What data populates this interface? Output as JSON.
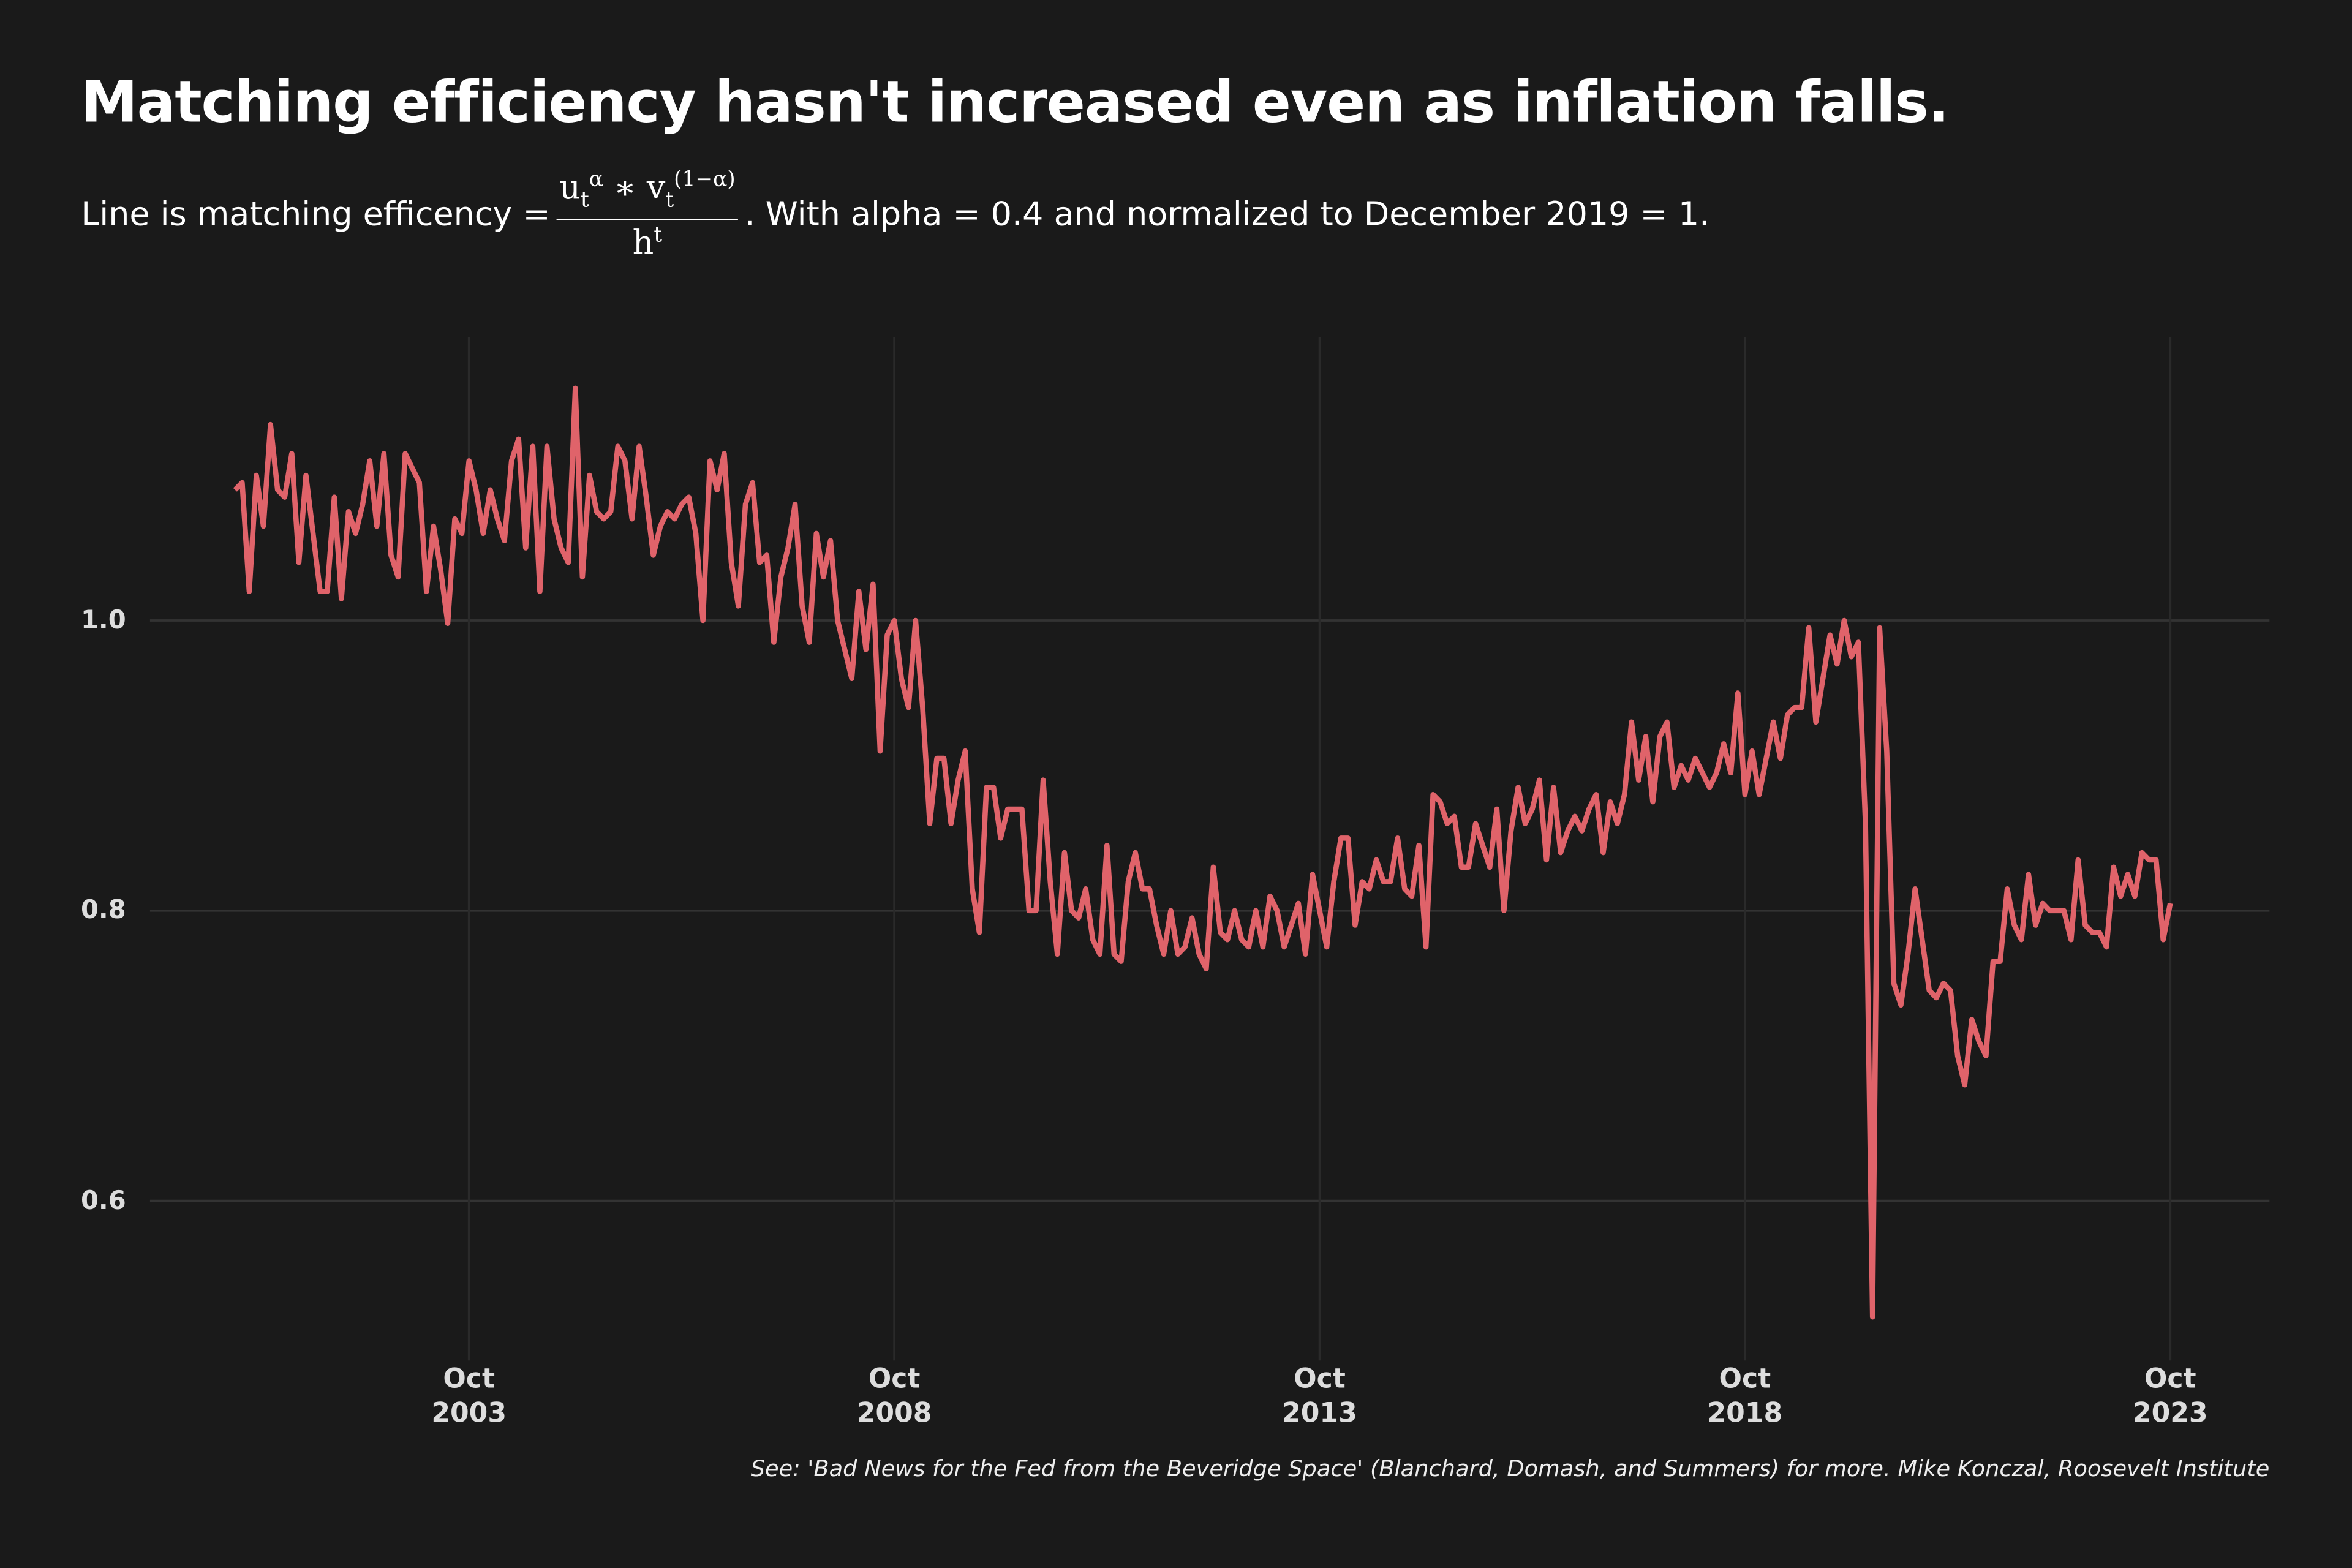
{
  "chart_data": {
    "type": "line",
    "title": "Matching efficiency hasn't increased even as inflation falls.",
    "subtitle": {
      "before": "Line is matching efficency =",
      "numerator": {
        "u": "u",
        "u_sub": "t",
        "u_sup": "α",
        "op": "∗",
        "v": "v",
        "v_sub": "t",
        "v_sup": "(1−α)"
      },
      "denominator": {
        "h": "h",
        "h_sup": "t"
      },
      "after": ". With alpha = 0.4 and normalized to December 2019 = 1."
    },
    "caption": "See: 'Bad News for the Fed from the Beveridge Space' (Blanchard, Domash, and Summers) for more. Mike Konczal, Roosevelt Institute",
    "color": "#e0636a",
    "grid": true,
    "xlim": [
      "2000-01",
      "2024-12"
    ],
    "ylim": [
      0.49,
      1.195
    ],
    "yticks": [
      0.6,
      0.8,
      {
        "value": 1,
        "label": "1.0"
      }
    ],
    "xticks": [
      {
        "value": "2003-10",
        "label": "Oct 2003"
      },
      {
        "value": "2008-10",
        "label": "Oct 2008"
      },
      {
        "value": "2013-10",
        "label": "Oct 2013"
      },
      {
        "value": "2018-10",
        "label": "Oct 2018"
      },
      {
        "value": "2023-10",
        "label": "Oct 2023"
      }
    ],
    "x": [
      "2001-01",
      "2001-02",
      "2001-03",
      "2001-04",
      "2001-05",
      "2001-06",
      "2001-07",
      "2001-08",
      "2001-09",
      "2001-10",
      "2001-11",
      "2001-12",
      "2002-01",
      "2002-02",
      "2002-03",
      "2002-04",
      "2002-05",
      "2002-06",
      "2002-07",
      "2002-08",
      "2002-09",
      "2002-10",
      "2002-11",
      "2002-12",
      "2003-01",
      "2003-02",
      "2003-03",
      "2003-04",
      "2003-05",
      "2003-06",
      "2003-07",
      "2003-08",
      "2003-09",
      "2003-10",
      "2003-11",
      "2003-12",
      "2004-01",
      "2004-02",
      "2004-03",
      "2004-04",
      "2004-05",
      "2004-06",
      "2004-07",
      "2004-08",
      "2004-09",
      "2004-10",
      "2004-11",
      "2004-12",
      "2005-01",
      "2005-02",
      "2005-03",
      "2005-04",
      "2005-05",
      "2005-06",
      "2005-07",
      "2005-08",
      "2005-09",
      "2005-10",
      "2005-11",
      "2005-12",
      "2006-01",
      "2006-02",
      "2006-03",
      "2006-04",
      "2006-05",
      "2006-06",
      "2006-07",
      "2006-08",
      "2006-09",
      "2006-10",
      "2006-11",
      "2006-12",
      "2007-01",
      "2007-02",
      "2007-03",
      "2007-04",
      "2007-05",
      "2007-06",
      "2007-07",
      "2007-08",
      "2007-09",
      "2007-10",
      "2007-11",
      "2007-12",
      "2008-01",
      "2008-02",
      "2008-03",
      "2008-04",
      "2008-05",
      "2008-06",
      "2008-07",
      "2008-08",
      "2008-09",
      "2008-10",
      "2008-11",
      "2008-12",
      "2009-01",
      "2009-02",
      "2009-03",
      "2009-04",
      "2009-05",
      "2009-06",
      "2009-07",
      "2009-08",
      "2009-09",
      "2009-10",
      "2009-11",
      "2009-12",
      "2010-01",
      "2010-02",
      "2010-03",
      "2010-04",
      "2010-05",
      "2010-06",
      "2010-07",
      "2010-08",
      "2010-09",
      "2010-10",
      "2010-11",
      "2010-12",
      "2011-01",
      "2011-02",
      "2011-03",
      "2011-04",
      "2011-05",
      "2011-06",
      "2011-07",
      "2011-08",
      "2011-09",
      "2011-10",
      "2011-11",
      "2011-12",
      "2012-01",
      "2012-02",
      "2012-03",
      "2012-04",
      "2012-05",
      "2012-06",
      "2012-07",
      "2012-08",
      "2012-09",
      "2012-10",
      "2012-11",
      "2012-12",
      "2013-01",
      "2013-02",
      "2013-03",
      "2013-04",
      "2013-05",
      "2013-06",
      "2013-07",
      "2013-08",
      "2013-09",
      "2013-10",
      "2013-11",
      "2013-12",
      "2014-01",
      "2014-02",
      "2014-03",
      "2014-04",
      "2014-05",
      "2014-06",
      "2014-07",
      "2014-08",
      "2014-09",
      "2014-10",
      "2014-11",
      "2014-12",
      "2015-01",
      "2015-02",
      "2015-03",
      "2015-04",
      "2015-05",
      "2015-06",
      "2015-07",
      "2015-08",
      "2015-09",
      "2015-10",
      "2015-11",
      "2015-12",
      "2016-01",
      "2016-02",
      "2016-03",
      "2016-04",
      "2016-05",
      "2016-06",
      "2016-07",
      "2016-08",
      "2016-09",
      "2016-10",
      "2016-11",
      "2016-12",
      "2017-01",
      "2017-02",
      "2017-03",
      "2017-04",
      "2017-05",
      "2017-06",
      "2017-07",
      "2017-08",
      "2017-09",
      "2017-10",
      "2017-11",
      "2017-12",
      "2018-01",
      "2018-02",
      "2018-03",
      "2018-04",
      "2018-05",
      "2018-06",
      "2018-07",
      "2018-08",
      "2018-09",
      "2018-10",
      "2018-11",
      "2018-12",
      "2019-01",
      "2019-02",
      "2019-03",
      "2019-04",
      "2019-05",
      "2019-06",
      "2019-07",
      "2019-08",
      "2019-09",
      "2019-10",
      "2019-11",
      "2019-12",
      "2020-01",
      "2020-02",
      "2020-03",
      "2020-04",
      "2020-05",
      "2020-06",
      "2020-07",
      "2020-08",
      "2020-09",
      "2020-10",
      "2020-11",
      "2020-12",
      "2021-01",
      "2021-02",
      "2021-03",
      "2021-04",
      "2021-05",
      "2021-06",
      "2021-07",
      "2021-08",
      "2021-09",
      "2021-10",
      "2021-11",
      "2021-12",
      "2022-01",
      "2022-02",
      "2022-03",
      "2022-04",
      "2022-05",
      "2022-06",
      "2022-07",
      "2022-08",
      "2022-09",
      "2022-10",
      "2022-11",
      "2022-12",
      "2023-01",
      "2023-02",
      "2023-03",
      "2023-04",
      "2023-05",
      "2023-06",
      "2023-07",
      "2023-08",
      "2023-09",
      "2023-10"
    ],
    "values": [
      1.09,
      1.095,
      1.02,
      1.1,
      1.065,
      1.135,
      1.09,
      1.085,
      1.115,
      1.04,
      1.1,
      1.06,
      1.02,
      1.02,
      1.085,
      1.015,
      1.075,
      1.06,
      1.08,
      1.11,
      1.065,
      1.115,
      1.045,
      1.03,
      1.115,
      1.105,
      1.095,
      1.02,
      1.065,
      1.035,
      0.998,
      1.07,
      1.06,
      1.11,
      1.09,
      1.06,
      1.09,
      1.07,
      1.055,
      1.11,
      1.125,
      1.05,
      1.12,
      1.02,
      1.12,
      1.07,
      1.05,
      1.04,
      1.16,
      1.03,
      1.1,
      1.075,
      1.07,
      1.075,
      1.12,
      1.11,
      1.07,
      1.12,
      1.085,
      1.045,
      1.065,
      1.075,
      1.07,
      1.08,
      1.085,
      1.06,
      1.0,
      1.11,
      1.09,
      1.115,
      1.04,
      1.01,
      1.08,
      1.095,
      1.04,
      1.045,
      0.985,
      1.03,
      1.05,
      1.08,
      1.01,
      0.985,
      1.06,
      1.03,
      1.055,
      1.0,
      0.98,
      0.96,
      1.02,
      0.98,
      1.025,
      0.91,
      0.99,
      1.0,
      0.96,
      0.94,
      1.0,
      0.94,
      0.86,
      0.905,
      0.905,
      0.86,
      0.89,
      0.91,
      0.815,
      0.785,
      0.885,
      0.885,
      0.85,
      0.87,
      0.87,
      0.87,
      0.8,
      0.8,
      0.89,
      0.82,
      0.77,
      0.84,
      0.8,
      0.795,
      0.815,
      0.78,
      0.77,
      0.845,
      0.77,
      0.765,
      0.82,
      0.84,
      0.815,
      0.815,
      0.79,
      0.77,
      0.8,
      0.77,
      0.775,
      0.795,
      0.77,
      0.76,
      0.83,
      0.785,
      0.78,
      0.8,
      0.78,
      0.775,
      0.8,
      0.775,
      0.81,
      0.8,
      0.775,
      0.79,
      0.805,
      0.77,
      0.825,
      0.8,
      0.775,
      0.82,
      0.85,
      0.85,
      0.79,
      0.82,
      0.815,
      0.835,
      0.82,
      0.82,
      0.85,
      0.815,
      0.81,
      0.845,
      0.775,
      0.88,
      0.875,
      0.86,
      0.865,
      0.83,
      0.83,
      0.86,
      0.845,
      0.83,
      0.87,
      0.8,
      0.855,
      0.885,
      0.86,
      0.87,
      0.89,
      0.835,
      0.885,
      0.84,
      0.855,
      0.865,
      0.855,
      0.87,
      0.88,
      0.84,
      0.875,
      0.86,
      0.88,
      0.93,
      0.89,
      0.92,
      0.875,
      0.92,
      0.93,
      0.885,
      0.9,
      0.89,
      0.905,
      0.895,
      0.885,
      0.895,
      0.915,
      0.895,
      0.95,
      0.88,
      0.91,
      0.88,
      0.905,
      0.93,
      0.905,
      0.935,
      0.94,
      0.94,
      0.995,
      0.93,
      0.96,
      0.99,
      0.97,
      1.0,
      0.975,
      0.985,
      0.86,
      0.52,
      0.995,
      0.91,
      0.75,
      0.735,
      0.77,
      0.815,
      0.78,
      0.745,
      0.74,
      0.75,
      0.745,
      0.7,
      0.68,
      0.725,
      0.71,
      0.7,
      0.765,
      0.765,
      0.815,
      0.79,
      0.78,
      0.825,
      0.79,
      0.805,
      0.8,
      0.8,
      0.8,
      0.78,
      0.835,
      0.79,
      0.785,
      0.785,
      0.775,
      0.83,
      0.81,
      0.825,
      0.81,
      0.84,
      0.835,
      0.835,
      0.78,
      0.805
    ]
  }
}
